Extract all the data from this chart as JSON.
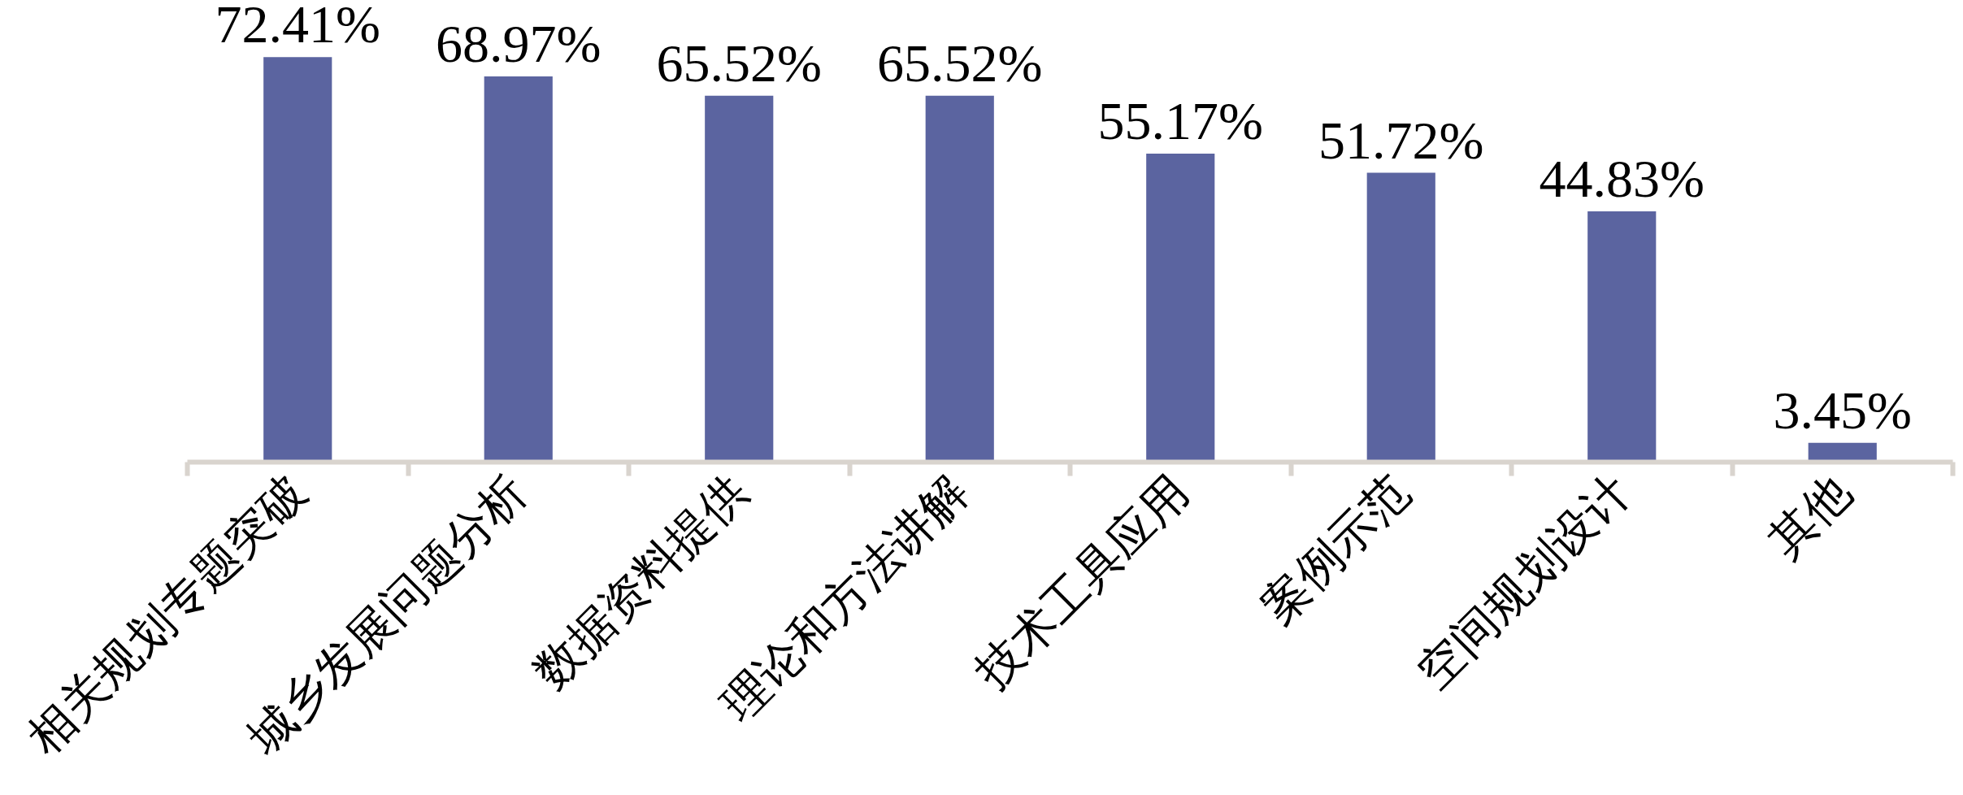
{
  "chart_data": {
    "type": "bar",
    "categories": [
      "相关规划专题突破",
      "城乡发展问题分析",
      "数据资料提供",
      "理论和方法讲解",
      "技术工具应用",
      "案例示范",
      "空间规划设计",
      "其他"
    ],
    "values": [
      72.41,
      68.97,
      65.52,
      65.52,
      55.17,
      51.72,
      44.83,
      3.45
    ],
    "color": "#5b64a0",
    "value_labels": [
      "72.41%",
      "68.97%",
      "65.52%",
      "65.52%",
      "55.17%",
      "51.72%",
      "44.83%",
      "3.45%"
    ],
    "tick_labels": "x"
  }
}
